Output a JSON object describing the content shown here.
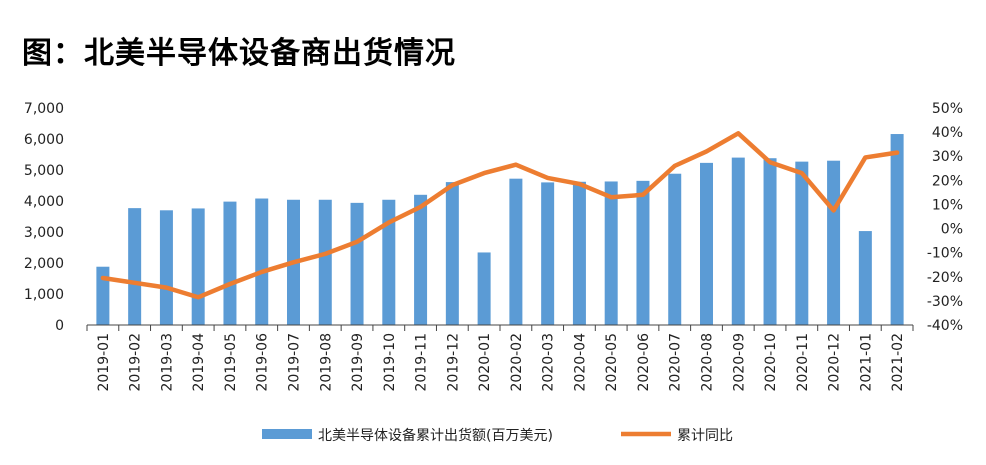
{
  "title": "图：北美半导体设备商出货情况",
  "chart_data": {
    "type": "bar+line",
    "categories": [
      "2019-01",
      "2019-02",
      "2019-03",
      "2019-04",
      "2019-05",
      "2019-06",
      "2019-07",
      "2019-08",
      "2019-09",
      "2019-10",
      "2019-11",
      "2019-12",
      "2020-01",
      "2020-02",
      "2020-03",
      "2020-04",
      "2020-05",
      "2020-06",
      "2020-07",
      "2020-08",
      "2020-09",
      "2020-10",
      "2020-11",
      "2020-12",
      "2021-01",
      "2021-02"
    ],
    "series": [
      {
        "name": "北美半导体设备累计出货额(百万美元)",
        "type": "bar",
        "axis": "left",
        "color": "#5B9BD5",
        "values": [
          1880,
          3770,
          3700,
          3760,
          3980,
          4080,
          4040,
          4040,
          3940,
          4040,
          4200,
          4610,
          2340,
          4720,
          4600,
          4620,
          4630,
          4650,
          4880,
          5230,
          5400,
          5380,
          5270,
          5300,
          3030,
          6160
        ]
      },
      {
        "name": "累计同比",
        "type": "line",
        "axis": "right",
        "color": "#ED7D31",
        "values": [
          -20.5,
          -22.5,
          -24.5,
          -28.5,
          -23,
          -18,
          -14,
          -10.5,
          -5.5,
          2.5,
          9,
          18,
          23,
          26.5,
          21,
          18.5,
          13,
          14,
          26,
          32,
          39.5,
          27.5,
          23,
          7.5,
          29.5,
          31.5
        ]
      }
    ],
    "y_left": {
      "ylim": [
        0,
        7000
      ],
      "ticks": [
        "0",
        "1,000",
        "2,000",
        "3,000",
        "4,000",
        "5,000",
        "6,000",
        "7,000"
      ]
    },
    "y_right": {
      "ylim": [
        -40,
        50
      ],
      "ticks": [
        "-40%",
        "-30%",
        "-20%",
        "-10%",
        "0%",
        "10%",
        "20%",
        "30%",
        "40%",
        "50%"
      ]
    },
    "grid": false,
    "legend_position": "bottom"
  }
}
